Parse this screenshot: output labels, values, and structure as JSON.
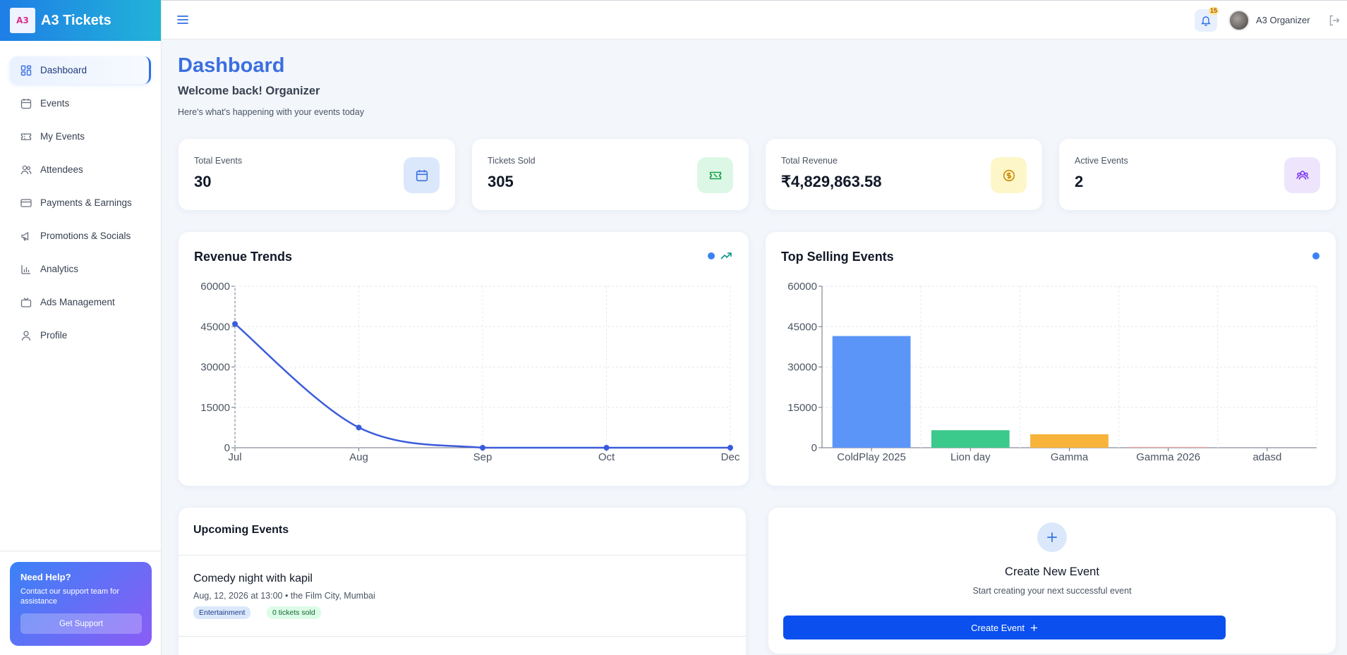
{
  "app": {
    "brand": "A3 Tickets",
    "logo_text": "A3"
  },
  "sidebar": {
    "items": [
      {
        "label": "Dashboard",
        "icon": "dashboard-icon",
        "active": true
      },
      {
        "label": "Events",
        "icon": "calendar-icon"
      },
      {
        "label": "My Events",
        "icon": "ticket-icon"
      },
      {
        "label": "Attendees",
        "icon": "users-icon"
      },
      {
        "label": "Payments & Earnings",
        "icon": "credit-card-icon"
      },
      {
        "label": "Promotions & Socials",
        "icon": "megaphone-icon"
      },
      {
        "label": "Analytics",
        "icon": "bar-chart-icon"
      },
      {
        "label": "Ads Management",
        "icon": "tv-icon"
      },
      {
        "label": "Profile",
        "icon": "user-icon"
      }
    ],
    "help": {
      "title": "Need Help?",
      "text": "Contact our support team for assistance",
      "button": "Get Support"
    }
  },
  "topbar": {
    "notifications": "15",
    "user": "A3 Organizer"
  },
  "header": {
    "title": "Dashboard",
    "welcome": "Welcome back! Organizer",
    "subtitle": "Here's what's happening with your events today"
  },
  "stats": [
    {
      "label": "Total Events",
      "value": "30",
      "icon": "calendar-icon",
      "bg": "#dbe8fb",
      "color": "#3b6fe0"
    },
    {
      "label": "Tickets Sold",
      "value": "305",
      "icon": "ticket-icon",
      "bg": "#ddf7e6",
      "color": "#16a34a"
    },
    {
      "label": "Total Revenue",
      "value": "₹4,829,863.58",
      "icon": "dollar-icon",
      "bg": "#fdf6c8",
      "color": "#ca8a04"
    },
    {
      "label": "Active Events",
      "value": "2",
      "icon": "users-icon",
      "bg": "#eee5fd",
      "color": "#7c3aed"
    }
  ],
  "revenue_chart": {
    "title": "Revenue Trends"
  },
  "top_chart": {
    "title": "Top Selling Events"
  },
  "chart_data": [
    {
      "type": "line",
      "title": "Revenue Trends",
      "categories": [
        "Jul",
        "Aug",
        "Sep",
        "Oct",
        "Dec"
      ],
      "values": [
        46000,
        7500,
        0,
        0,
        0
      ],
      "ylim": [
        0,
        60000
      ],
      "yticks": [
        "0",
        "15000",
        "30000",
        "45000",
        "60000"
      ],
      "grid": true,
      "color": "#3b5bdb"
    },
    {
      "type": "bar",
      "title": "Top Selling Events",
      "categories": [
        "ColdPlay 2025",
        "Lion day",
        "Gamma",
        "Gamma 2026",
        "adasd"
      ],
      "values": [
        41500,
        6500,
        5000,
        300,
        0
      ],
      "colors": [
        "#5b95f7",
        "#3cc98c",
        "#f8b33b",
        "#f3a6a6",
        "#c4b5fd"
      ],
      "ylim": [
        0,
        60000
      ],
      "yticks": [
        "0",
        "15000",
        "30000",
        "45000",
        "60000"
      ],
      "grid": true
    }
  ],
  "upcoming": {
    "title": "Upcoming Events",
    "events": [
      {
        "title": "Comedy night with kapil",
        "meta": "Aug, 12, 2026 at 13:00 • the Film City, Mumbai",
        "category": "Entertainment",
        "sold": "0 tickets sold"
      }
    ]
  },
  "create": {
    "title": "Create New Event",
    "subtitle": "Start creating your next successful event",
    "button": "Create Event"
  }
}
